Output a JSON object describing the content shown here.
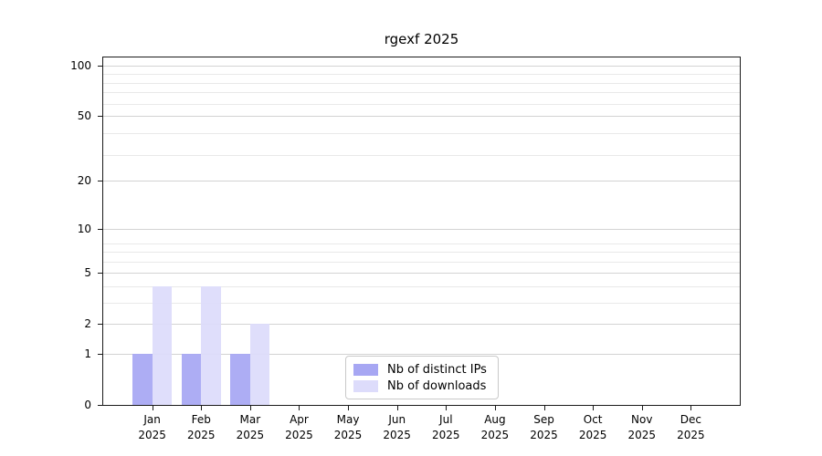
{
  "title": "rgexf 2025",
  "chart_data": {
    "type": "bar",
    "title": "rgexf 2025",
    "categories": [
      "Jan",
      "Feb",
      "Mar",
      "Apr",
      "May",
      "Jun",
      "Jul",
      "Aug",
      "Sep",
      "Oct",
      "Nov",
      "Dec"
    ],
    "year_label": "2025",
    "series": [
      {
        "name": "Nb of distinct IPs",
        "color": "#a7a7f3",
        "values": [
          1,
          1,
          1,
          0,
          0,
          0,
          0,
          0,
          0,
          0,
          0,
          0
        ]
      },
      {
        "name": "Nb of downloads",
        "color": "#dddcfb",
        "values": [
          4,
          4,
          2,
          0,
          0,
          0,
          0,
          0,
          0,
          0,
          0,
          0
        ]
      }
    ],
    "y_axis": {
      "scale": "log10(1+y)",
      "tick_values": [
        0,
        1,
        2,
        5,
        10,
        20,
        50,
        100
      ],
      "tick_labels": [
        "0",
        "1",
        "2",
        "5",
        "10",
        "20",
        "50",
        "100"
      ],
      "minor_gridline_values": [
        3,
        4,
        6,
        7,
        8,
        29,
        39,
        59,
        69,
        79,
        89
      ],
      "ylim": [
        0,
        113
      ],
      "grid": true
    },
    "legend": {
      "position": "lower center",
      "entries": [
        "Nb of distinct IPs",
        "Nb of downloads"
      ]
    }
  },
  "colors": {
    "background": "#ffffff",
    "spine": "#1a1a1a",
    "grid_major": "#d3d3d3",
    "grid_minor": "#e9e9e9",
    "bar_distinct_ips": "#a7a7f3",
    "bar_downloads": "#dddcfb",
    "legend_border": "#c9c9c9",
    "text": "#000000"
  }
}
